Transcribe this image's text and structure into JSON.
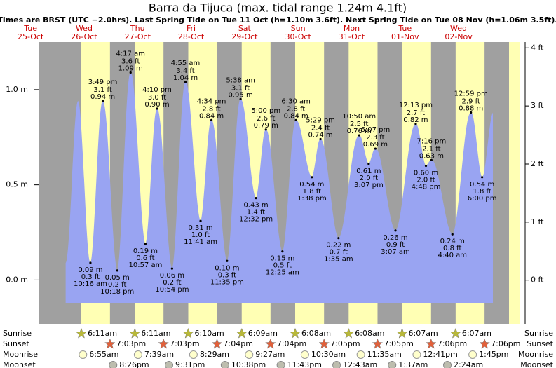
{
  "header": {
    "title": "Barra da Tijuca (max. tidal range 1.24m 4.1ft)",
    "subtitle": "Times are BRST (UTC −2.0hrs). Last Spring Tide on Tue 11 Oct (h=1.10m 3.6ft). Next Spring Tide on Tue 08 Nov (h=1.06m 3.5ft)."
  },
  "chart_data": {
    "type": "area",
    "color": "#99a4f2",
    "ylim": [
      -0.12,
      1.25
    ],
    "yticks": [
      {
        "value": 0,
        "label": "0.0 m"
      },
      {
        "value": 0.5,
        "label": "0.5 m"
      },
      {
        "value": 1,
        "label": "1.0 m"
      }
    ],
    "y2lim": [
      -0.39,
      4.1
    ],
    "y2ticks": [
      {
        "value": 0,
        "label": "0 ft"
      },
      {
        "value": 1,
        "label": "1 ft"
      },
      {
        "value": 2,
        "label": "2 ft"
      },
      {
        "value": 3,
        "label": "3 ft"
      },
      {
        "value": 4,
        "label": "4 ft"
      }
    ],
    "row_labels": [
      "Sunrise",
      "Sunset",
      "Moonrise",
      "Moonset"
    ],
    "days": [
      {
        "dow": "Tue",
        "date": "25-Oct",
        "tides": []
      },
      {
        "dow": "Wed",
        "date": "26-Oct",
        "sunrise": "6:11am",
        "sunset": "7:03pm",
        "moonrise": "6:55am",
        "moonset": "8:26pm",
        "tides": [
          {
            "time": "10:16 am",
            "m": 0.09,
            "m_label": "0.09 m",
            "ft_label": "0.3 ft"
          },
          {
            "time": "3:49 pm",
            "m": 0.94,
            "m_label": "0.94 m",
            "ft_label": "3.1 ft"
          },
          {
            "time": "10:18 pm",
            "m": 0.05,
            "m_label": "0.05 m",
            "ft_label": "0.2 ft"
          }
        ]
      },
      {
        "dow": "Thu",
        "date": "27-Oct",
        "sunrise": "6:11am",
        "sunset": "7:03pm",
        "moonrise": "7:39am",
        "moonset": "9:31pm",
        "tides": [
          {
            "time": "4:17 am",
            "m": 1.09,
            "m_label": "1.09 m",
            "ft_label": "3.6 ft"
          },
          {
            "time": "10:57 am",
            "m": 0.19,
            "m_label": "0.19 m",
            "ft_label": "0.6 ft"
          },
          {
            "time": "4:10 pm",
            "m": 0.9,
            "m_label": "0.90 m",
            "ft_label": "3.0 ft"
          },
          {
            "time": "10:54 pm",
            "m": 0.06,
            "m_label": "0.06 m",
            "ft_label": "0.2 ft"
          }
        ]
      },
      {
        "dow": "Fri",
        "date": "28-Oct",
        "sunrise": "6:10am",
        "sunset": "7:04pm",
        "moonrise": "8:29am",
        "moonset": "10:38pm",
        "tides": [
          {
            "time": "4:55 am",
            "m": 1.04,
            "m_label": "1.04 m",
            "ft_label": "3.4 ft"
          },
          {
            "time": "11:41 am",
            "m": 0.31,
            "m_label": "0.31 m",
            "ft_label": "1.0 ft"
          },
          {
            "time": "4:34 pm",
            "m": 0.84,
            "m_label": "0.84 m",
            "ft_label": "2.8 ft"
          },
          {
            "time": "11:35 pm",
            "m": 0.1,
            "m_label": "0.10 m",
            "ft_label": "0.3 ft"
          }
        ]
      },
      {
        "dow": "Sat",
        "date": "29-Oct",
        "sunrise": "6:09am",
        "sunset": "7:04pm",
        "moonrise": "9:27am",
        "moonset": "11:43pm",
        "tides": [
          {
            "time": "5:38 am",
            "m": 0.95,
            "m_label": "0.95 m",
            "ft_label": "3.1 ft"
          },
          {
            "time": "12:32 pm",
            "m": 0.43,
            "m_label": "0.43 m",
            "ft_label": "1.4 ft"
          },
          {
            "time": "5:00 pm",
            "m": 0.79,
            "m_label": "0.79 m",
            "ft_label": "2.6 ft"
          }
        ]
      },
      {
        "dow": "Sun",
        "date": "30-Oct",
        "sunrise": "6:08am",
        "sunset": "7:05pm",
        "moonrise": "10:30am",
        "tides": [
          {
            "time": "12:25 am",
            "m": 0.15,
            "m_label": "0.15 m",
            "ft_label": "0.5 ft"
          },
          {
            "time": "6:30 am",
            "m": 0.84,
            "m_label": "0.84 m",
            "ft_label": "2.8 ft"
          },
          {
            "time": "1:38 pm",
            "m": 0.54,
            "m_label": "0.54 m",
            "ft_label": "1.8 ft"
          },
          {
            "time": "5:29 pm",
            "m": 0.74,
            "m_label": "0.74 m",
            "ft_label": "2.4 ft"
          }
        ]
      },
      {
        "dow": "Mon",
        "date": "31-Oct",
        "sunrise": "6:08am",
        "sunset": "7:05pm",
        "moonrise": "11:35am",
        "moonset": "12:43am",
        "tides": [
          {
            "time": "1:35 am",
            "m": 0.22,
            "m_label": "0.22 m",
            "ft_label": "0.7 ft"
          },
          {
            "time": "10:50 am",
            "m": 0.76,
            "m_label": "0.76 m",
            "ft_label": "2.5 ft"
          },
          {
            "time": "3:07 pm",
            "m": 0.61,
            "m_label": "0.61 m",
            "ft_label": "2.0 ft"
          },
          {
            "time": "6:07 pm",
            "m": 0.69,
            "m_label": "0.69 m",
            "ft_label": "2.3 ft"
          }
        ]
      },
      {
        "dow": "Tue",
        "date": "01-Nov",
        "sunrise": "6:07am",
        "sunset": "7:06pm",
        "moonrise": "12:41pm",
        "moonset": "1:37am",
        "tides": [
          {
            "time": "3:07 am",
            "m": 0.26,
            "m_label": "0.26 m",
            "ft_label": "0.9 ft"
          },
          {
            "time": "12:13 pm",
            "m": 0.82,
            "m_label": "0.82 m",
            "ft_label": "2.7 ft"
          },
          {
            "time": "4:48 pm",
            "m": 0.6,
            "m_label": "0.60 m",
            "ft_label": "2.0 ft"
          },
          {
            "time": "7:16 pm",
            "m": 0.63,
            "m_label": "0.63 m",
            "ft_label": "2.1 ft"
          }
        ]
      },
      {
        "dow": "Wed",
        "date": "02-Nov",
        "sunrise": "6:07am",
        "sunset": "7:06pm",
        "moonrise": "1:45pm",
        "moonset": "2:24am",
        "tides": [
          {
            "time": "4:40 am",
            "m": 0.24,
            "m_label": "0.24 m",
            "ft_label": "0.8 ft"
          },
          {
            "time": "12:59 pm",
            "m": 0.88,
            "m_label": "0.88 m",
            "ft_label": "2.9 ft"
          },
          {
            "time": "6:00 pm",
            "m": 0.54,
            "m_label": "0.54 m",
            "ft_label": "1.8 ft"
          }
        ]
      }
    ]
  }
}
